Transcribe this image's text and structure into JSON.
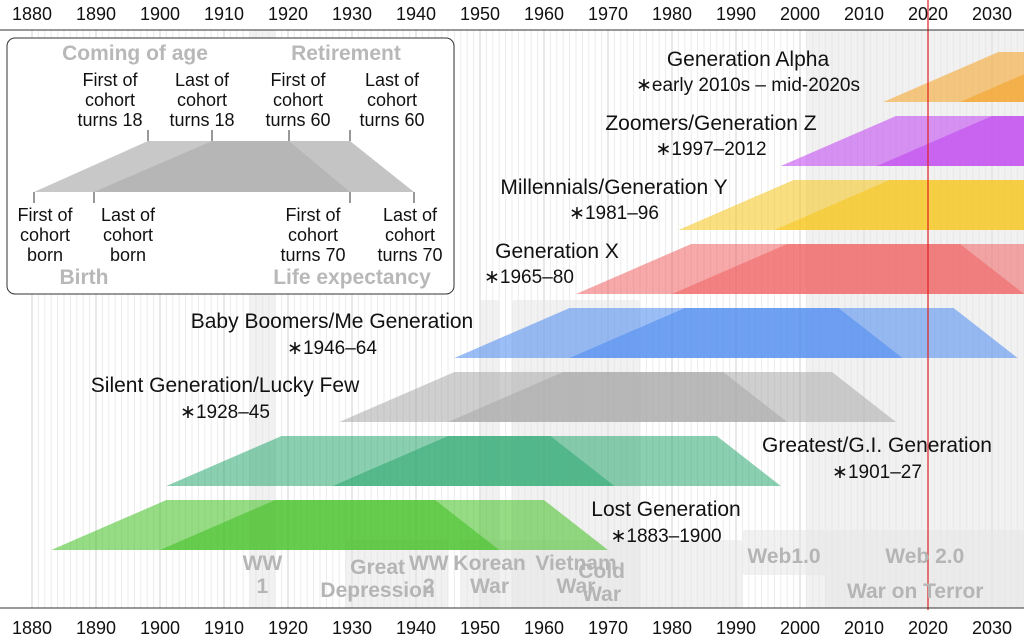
{
  "axis": {
    "start_year": 1875,
    "end_year": 2035,
    "labels": [
      "1880",
      "1890",
      "1900",
      "1910",
      "1920",
      "1930",
      "1940",
      "1950",
      "1960",
      "1970",
      "1980",
      "1990",
      "2000",
      "2010",
      "2020",
      "2030"
    ],
    "marker_year": 2020,
    "marker_color": "#e02020"
  },
  "events": [
    {
      "name": "ww1",
      "label": [
        "WW",
        "1"
      ],
      "start": 1914,
      "end": 1918
    },
    {
      "name": "great-depression",
      "label": [
        "Great",
        "Depression"
      ],
      "start": 1929,
      "end": 1939
    },
    {
      "name": "ww2",
      "label": [
        "WW",
        "2"
      ],
      "start": 1939,
      "end": 1945
    },
    {
      "name": "korean-war",
      "label": [
        "Korean",
        "War"
      ],
      "start": 1950,
      "end": 1953
    },
    {
      "name": "vietnam-war",
      "label": [
        "Vietnam",
        "War"
      ],
      "start": 1955,
      "end": 1975
    },
    {
      "name": "cold-war",
      "label": [
        "Cold",
        "War"
      ],
      "start": 1947,
      "end": 1991
    },
    {
      "name": "web1",
      "label": [
        "Web1.0"
      ],
      "start": 1991,
      "end": 2004
    },
    {
      "name": "web2",
      "label": [
        "Web 2.0"
      ],
      "start": 2004,
      "end": 2035
    },
    {
      "name": "war-on-terror",
      "label": [
        "War on Terror"
      ],
      "start": 2001,
      "end": 2035
    }
  ],
  "generations": [
    {
      "name": "generation-alpha",
      "title": "Generation Alpha",
      "years": "∗early 2010s – mid-2020s",
      "start": 2013,
      "end": 2025,
      "color": "#f4a020"
    },
    {
      "name": "generation-z",
      "title": "Zoomers/Generation Z",
      "years": "∗1997–2012",
      "start": 1997,
      "end": 2012,
      "color": "#c040f0"
    },
    {
      "name": "millennials",
      "title": "Millennials/Generation Y",
      "years": "∗1981–96",
      "start": 1981,
      "end": 1996,
      "color": "#f5c518"
    },
    {
      "name": "generation-x",
      "title": "Generation X",
      "years": "∗1965–80",
      "start": 1965,
      "end": 1980,
      "color": "#f06060"
    },
    {
      "name": "baby-boomers",
      "title": "Baby Boomers/Me Generation",
      "years": "∗1946–64",
      "start": 1946,
      "end": 1964,
      "color": "#4a88f0"
    },
    {
      "name": "silent-generation",
      "title": "Silent Generation/Lucky Few",
      "years": "∗1928–45",
      "start": 1928,
      "end": 1945,
      "color": "#a8a8a8"
    },
    {
      "name": "greatest-generation",
      "title": "Greatest/G.I. Generation",
      "years": "∗1901–27",
      "start": 1901,
      "end": 1927,
      "color": "#2aa870"
    },
    {
      "name": "lost-generation",
      "title": "Lost Generation",
      "years": "∗1883–1900",
      "start": 1883,
      "end": 1900,
      "color": "#40c020"
    }
  ],
  "legend": {
    "coming_of_age": "Coming of age",
    "retirement": "Retirement",
    "birth": "Birth",
    "life_expectancy": "Life expectancy",
    "top_labels": [
      [
        "First of",
        "cohort",
        "turns 18"
      ],
      [
        "Last of",
        "cohort",
        "turns 18"
      ],
      [
        "First of",
        "cohort",
        "turns 60"
      ],
      [
        "Last of",
        "cohort",
        "turns 60"
      ]
    ],
    "bottom_labels": [
      [
        "First of",
        "cohort",
        "born"
      ],
      [
        "Last of",
        "cohort",
        "born"
      ],
      [
        "First of",
        "cohort",
        "turns 70"
      ],
      [
        "Last of",
        "cohort",
        "turns 70"
      ]
    ]
  }
}
